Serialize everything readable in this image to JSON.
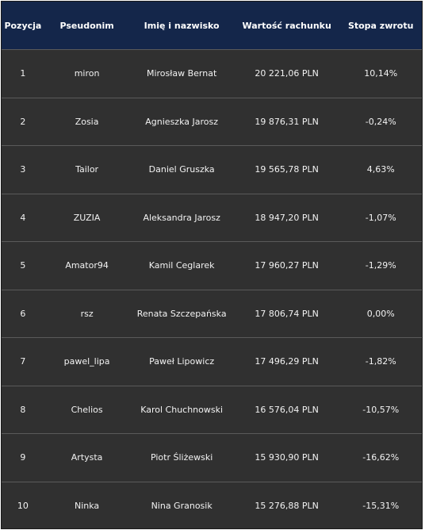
{
  "table": {
    "headers": [
      "Pozycja",
      "Pseudonim",
      "Imię i nazwisko",
      "Wartość rachunku",
      "Stopa zwrotu"
    ],
    "rows": [
      [
        "1",
        "miron",
        "Mirosław Bernat",
        "20 221,06 PLN",
        "10,14%"
      ],
      [
        "2",
        "Zosia",
        "Agnieszka Jarosz",
        "19 876,31 PLN",
        "-0,24%"
      ],
      [
        "3",
        "Tailor",
        "Daniel Gruszka",
        "19 565,78 PLN",
        "4,63%"
      ],
      [
        "4",
        "ZUZIA",
        "Aleksandra Jarosz",
        "18 947,20 PLN",
        "-1,07%"
      ],
      [
        "5",
        "Amator94",
        "Kamil Ceglarek",
        "17 960,27 PLN",
        "-1,29%"
      ],
      [
        "6",
        "rsz",
        "Renata Szczepańska",
        "17 806,74 PLN",
        "0,00%"
      ],
      [
        "7",
        "pawel_lipa",
        "Paweł Lipowicz",
        "17 496,29 PLN",
        "-1,82%"
      ],
      [
        "8",
        "Chelios",
        "Karol Chuchnowski",
        "16 576,04 PLN",
        "-10,57%"
      ],
      [
        "9",
        "Artysta",
        "Piotr Śliżewski",
        "15 930,90 PLN",
        "-16,62%"
      ],
      [
        "10",
        "Ninka",
        "Nina Granosik",
        "15 276,88 PLN",
        "-15,31%"
      ]
    ]
  },
  "colors": {
    "header_bg": "#14264a",
    "body_bg": "#303030",
    "row_divider": "#5a5a5a",
    "text": "#f2f2f2"
  }
}
